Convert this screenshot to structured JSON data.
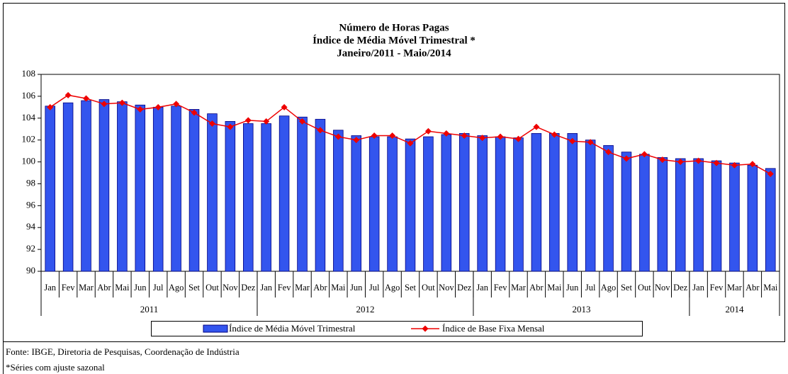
{
  "chart_data": {
    "type": "bar",
    "title": [
      "Número de Horas Pagas",
      "Índice de Média Móvel Trimestral *",
      "Janeiro/2011 - Maio/2014"
    ],
    "categories": [
      "Jan",
      "Fev",
      "Mar",
      "Abr",
      "Mai",
      "Jun",
      "Jul",
      "Ago",
      "Set",
      "Out",
      "Nov",
      "Dez",
      "Jan",
      "Fev",
      "Mar",
      "Abr",
      "Mai",
      "Jun",
      "Jul",
      "Ago",
      "Set",
      "Out",
      "Nov",
      "Dez",
      "Jan",
      "Fev",
      "Mar",
      "Abr",
      "Mai",
      "Jun",
      "Jul",
      "Ago",
      "Set",
      "Out",
      "Nov",
      "Dez",
      "Jan",
      "Fev",
      "Mar",
      "Abr",
      "Mai"
    ],
    "year_groups": [
      {
        "label": "2011",
        "count": 12
      },
      {
        "label": "2012",
        "count": 12
      },
      {
        "label": "2013",
        "count": 12
      },
      {
        "label": "2014",
        "count": 5
      }
    ],
    "series": [
      {
        "name": "Índice de Média Móvel Trimestral",
        "type": "bar",
        "color": "#3355ee",
        "values": [
          105.1,
          105.4,
          105.6,
          105.7,
          105.5,
          105.2,
          105.0,
          105.1,
          104.8,
          104.4,
          103.7,
          103.5,
          103.5,
          104.2,
          104.1,
          103.9,
          102.9,
          102.4,
          102.3,
          102.3,
          102.1,
          102.3,
          102.5,
          102.6,
          102.4,
          102.3,
          102.2,
          102.6,
          102.6,
          102.6,
          102.0,
          101.5,
          100.9,
          100.7,
          100.4,
          100.3,
          100.3,
          100.1,
          99.9,
          99.7,
          99.4
        ]
      },
      {
        "name": "Índice de Base Fixa Mensal",
        "type": "line",
        "color": "#ee0000",
        "values": [
          105.0,
          106.1,
          105.8,
          105.3,
          105.4,
          104.8,
          105.0,
          105.3,
          104.5,
          103.5,
          103.2,
          103.8,
          103.7,
          105.0,
          103.7,
          102.9,
          102.3,
          102.0,
          102.4,
          102.4,
          101.7,
          102.8,
          102.6,
          102.4,
          102.2,
          102.3,
          102.1,
          103.2,
          102.5,
          101.9,
          101.8,
          100.9,
          100.3,
          100.7,
          100.2,
          100.0,
          100.1,
          99.9,
          99.7,
          99.8,
          98.9
        ]
      }
    ],
    "ylim": [
      90,
      108
    ],
    "yticks": [
      90,
      92,
      94,
      96,
      98,
      100,
      102,
      104,
      106,
      108
    ],
    "source": "Fonte: IBGE, Diretoria de Pesquisas, Coordenação de Indústria",
    "note": "*Séries com ajuste sazonal"
  }
}
